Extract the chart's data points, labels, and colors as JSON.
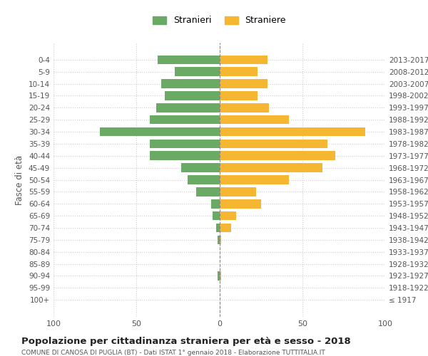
{
  "age_groups": [
    "100+",
    "95-99",
    "90-94",
    "85-89",
    "80-84",
    "75-79",
    "70-74",
    "65-69",
    "60-64",
    "55-59",
    "50-54",
    "45-49",
    "40-44",
    "35-39",
    "30-34",
    "25-29",
    "20-24",
    "15-19",
    "10-14",
    "5-9",
    "0-4"
  ],
  "birth_years": [
    "≤ 1917",
    "1918-1922",
    "1923-1927",
    "1928-1932",
    "1933-1937",
    "1938-1942",
    "1943-1947",
    "1948-1952",
    "1953-1957",
    "1958-1962",
    "1963-1967",
    "1968-1972",
    "1973-1977",
    "1978-1982",
    "1983-1987",
    "1988-1992",
    "1993-1997",
    "1998-2002",
    "2003-2007",
    "2008-2012",
    "2013-2017"
  ],
  "males": [
    0,
    0,
    1,
    0,
    0,
    1,
    2,
    4,
    5,
    14,
    19,
    23,
    42,
    42,
    72,
    42,
    38,
    33,
    35,
    27,
    37
  ],
  "females": [
    0,
    0,
    1,
    0,
    0,
    1,
    7,
    10,
    25,
    22,
    42,
    62,
    70,
    65,
    88,
    42,
    30,
    23,
    29,
    23,
    29
  ],
  "male_color": "#6aaa64",
  "female_color": "#f5b731",
  "male_label": "Stranieri",
  "female_label": "Straniere",
  "title_main": "Popolazione per cittadinanza straniera per età e sesso - 2018",
  "title_sub": "COMUNE DI CANOSA DI PUGLIA (BT) - Dati ISTAT 1° gennaio 2018 - Elaborazione TUTTITALIA.IT",
  "ylabel_left": "Fasce di età",
  "xlim": 100,
  "bg_color": "#ffffff",
  "grid_color": "#cccccc"
}
